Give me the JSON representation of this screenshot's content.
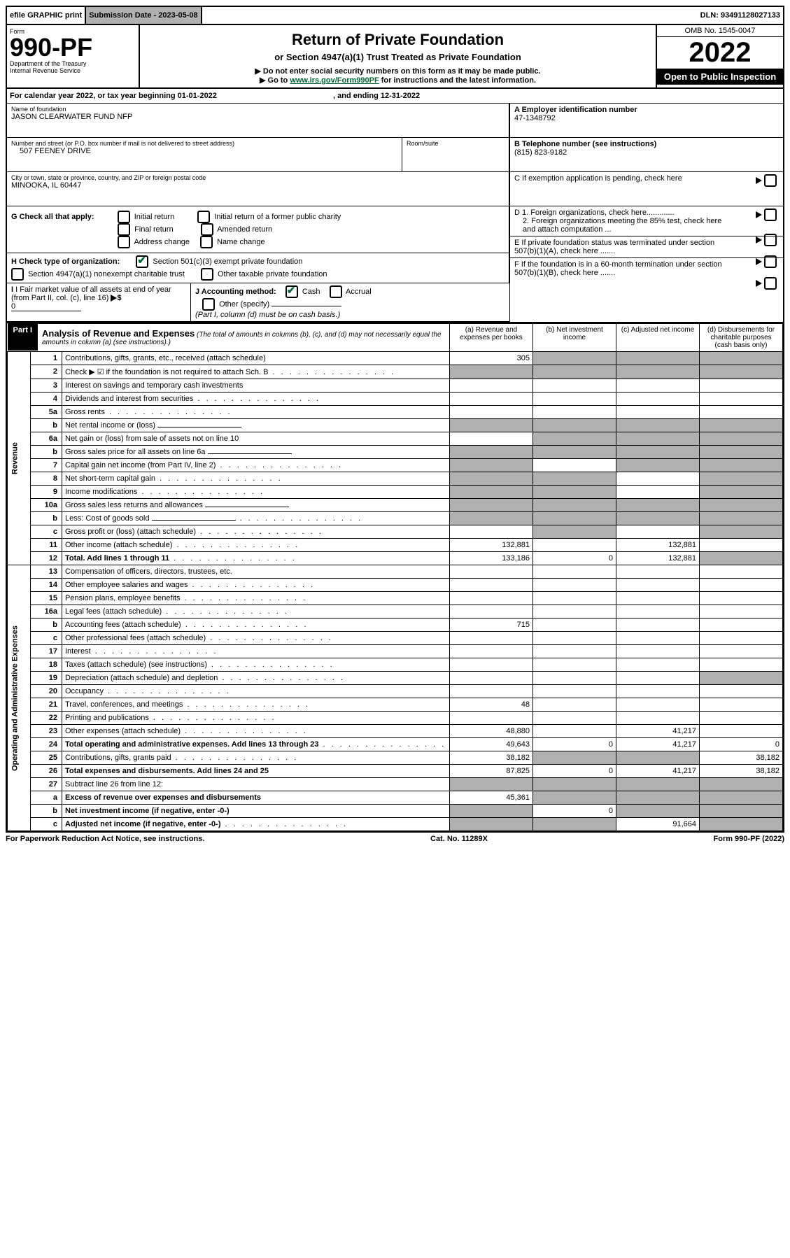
{
  "topbar": {
    "efile": "efile GRAPHIC print",
    "submission_label": "Submission Date - 2023-05-08",
    "dln": "DLN: 93491128027133"
  },
  "header": {
    "form_word": "Form",
    "form_num": "990-PF",
    "dept": "Department of the Treasury",
    "irs": "Internal Revenue Service",
    "title": "Return of Private Foundation",
    "subtitle": "or Section 4947(a)(1) Trust Treated as Private Foundation",
    "note1": "▶ Do not enter social security numbers on this form as it may be made public.",
    "note2_a": "▶ Go to ",
    "note2_link": "www.irs.gov/Form990PF",
    "note2_b": " for instructions and the latest information.",
    "omb": "OMB No. 1545-0047",
    "year": "2022",
    "open": "Open to Public Inspection"
  },
  "calyear": {
    "text_a": "For calendar year 2022, or tax year beginning 01-01-2022",
    "text_b": ", and ending 12-31-2022"
  },
  "ident": {
    "name_lbl": "Name of foundation",
    "name": "JASON CLEARWATER FUND NFP",
    "addr_lbl": "Number and street (or P.O. box number if mail is not delivered to street address)",
    "addr": "507 FEENEY DRIVE",
    "room_lbl": "Room/suite",
    "city_lbl": "City or town, state or province, country, and ZIP or foreign postal code",
    "city": "MINOOKA, IL  60447",
    "ein_lbl": "A Employer identification number",
    "ein": "47-1348792",
    "tel_lbl": "B Telephone number (see instructions)",
    "tel": "(815) 823-9182",
    "c_lbl": "C If exemption application is pending, check here",
    "d1_lbl": "D 1. Foreign organizations, check here.............",
    "d2_lbl": "2. Foreign organizations meeting the 85% test, check here and attach computation ...",
    "e_lbl": "E  If private foundation status was terminated under section 507(b)(1)(A), check here .......",
    "f_lbl": "F  If the foundation is in a 60-month termination under section 507(b)(1)(B), check here .......",
    "g_lbl": "G Check all that apply:",
    "g_opts": [
      "Initial return",
      "Initial return of a former public charity",
      "Final return",
      "Amended return",
      "Address change",
      "Name change"
    ],
    "h_lbl": "H Check type of organization:",
    "h_opt1": "Section 501(c)(3) exempt private foundation",
    "h_opt2": "Section 4947(a)(1) nonexempt charitable trust",
    "h_opt3": "Other taxable private foundation",
    "i_lbl": "I Fair market value of all assets at end of year (from Part II, col. (c), line 16)",
    "i_val": "0",
    "j_lbl": "J Accounting method:",
    "j_cash": "Cash",
    "j_accrual": "Accrual",
    "j_other": "Other (specify)",
    "j_note": "(Part I, column (d) must be on cash basis.)"
  },
  "part1": {
    "label": "Part I",
    "title": "Analysis of Revenue and Expenses",
    "title_note": "(The total of amounts in columns (b), (c), and (d) may not necessarily equal the amounts in column (a) (see instructions).)",
    "col_a": "(a)   Revenue and expenses per books",
    "col_b": "(b)   Net investment income",
    "col_c": "(c)   Adjusted net income",
    "col_d": "(d)   Disbursements for charitable purposes (cash basis only)"
  },
  "side": {
    "revenue": "Revenue",
    "opex": "Operating and Administrative Expenses"
  },
  "rows": [
    {
      "n": "1",
      "t": "Contributions, gifts, grants, etc., received (attach schedule)",
      "a": "305",
      "shade": [
        "b",
        "c",
        "d"
      ]
    },
    {
      "n": "2",
      "t": "Check ▶ ☑ if the foundation is not required to attach Sch. B",
      "dots": true,
      "novals": true,
      "shadeall": true
    },
    {
      "n": "3",
      "t": "Interest on savings and temporary cash investments"
    },
    {
      "n": "4",
      "t": "Dividends and interest from securities",
      "dots": true
    },
    {
      "n": "5a",
      "t": "Gross rents",
      "dots": true
    },
    {
      "n": "b",
      "t": "Net rental income or (loss)",
      "inline_blank": true,
      "shadeall": true
    },
    {
      "n": "6a",
      "t": "Net gain or (loss) from sale of assets not on line 10",
      "shade": [
        "b",
        "c",
        "d"
      ]
    },
    {
      "n": "b",
      "t": "Gross sales price for all assets on line 6a",
      "inline_blank": true,
      "shadeall": true
    },
    {
      "n": "7",
      "t": "Capital gain net income (from Part IV, line 2)",
      "dots": true,
      "shade": [
        "a",
        "c",
        "d"
      ]
    },
    {
      "n": "8",
      "t": "Net short-term capital gain",
      "dots": true,
      "shade": [
        "a",
        "b",
        "d"
      ]
    },
    {
      "n": "9",
      "t": "Income modifications",
      "dots": true,
      "shade": [
        "a",
        "b",
        "d"
      ]
    },
    {
      "n": "10a",
      "t": "Gross sales less returns and allowances",
      "inline_blank": true,
      "shadeall": true
    },
    {
      "n": "b",
      "t": "Less: Cost of goods sold",
      "dots": true,
      "inline_blank": true,
      "shadeall": true
    },
    {
      "n": "c",
      "t": "Gross profit or (loss) (attach schedule)",
      "dots": true,
      "shade": [
        "b",
        "d"
      ]
    },
    {
      "n": "11",
      "t": "Other income (attach schedule)",
      "dots": true,
      "a": "132,881",
      "c": "132,881"
    },
    {
      "n": "12",
      "t": "Total. Add lines 1 through 11",
      "dots": true,
      "bold": true,
      "a": "133,186",
      "b": "0",
      "c": "132,881",
      "shade": [
        "d"
      ]
    },
    {
      "n": "13",
      "t": "Compensation of officers, directors, trustees, etc."
    },
    {
      "n": "14",
      "t": "Other employee salaries and wages",
      "dots": true
    },
    {
      "n": "15",
      "t": "Pension plans, employee benefits",
      "dots": true
    },
    {
      "n": "16a",
      "t": "Legal fees (attach schedule)",
      "dots": true
    },
    {
      "n": "b",
      "t": "Accounting fees (attach schedule)",
      "dots": true,
      "a": "715"
    },
    {
      "n": "c",
      "t": "Other professional fees (attach schedule)",
      "dots": true
    },
    {
      "n": "17",
      "t": "Interest",
      "dots": true
    },
    {
      "n": "18",
      "t": "Taxes (attach schedule) (see instructions)",
      "dots": true
    },
    {
      "n": "19",
      "t": "Depreciation (attach schedule) and depletion",
      "dots": true,
      "shade": [
        "d"
      ]
    },
    {
      "n": "20",
      "t": "Occupancy",
      "dots": true
    },
    {
      "n": "21",
      "t": "Travel, conferences, and meetings",
      "dots": true,
      "a": "48"
    },
    {
      "n": "22",
      "t": "Printing and publications",
      "dots": true
    },
    {
      "n": "23",
      "t": "Other expenses (attach schedule)",
      "dots": true,
      "a": "48,880",
      "c": "41,217"
    },
    {
      "n": "24",
      "t": "Total operating and administrative expenses. Add lines 13 through 23",
      "dots": true,
      "bold": true,
      "a": "49,643",
      "b": "0",
      "c": "41,217",
      "d": "0"
    },
    {
      "n": "25",
      "t": "Contributions, gifts, grants paid",
      "dots": true,
      "a": "38,182",
      "d": "38,182",
      "shade": [
        "b",
        "c"
      ]
    },
    {
      "n": "26",
      "t": "Total expenses and disbursements. Add lines 24 and 25",
      "bold": true,
      "a": "87,825",
      "b": "0",
      "c": "41,217",
      "d": "38,182"
    },
    {
      "n": "27",
      "t": "Subtract line 26 from line 12:",
      "shadeall": true
    },
    {
      "n": "a",
      "t": "Excess of revenue over expenses and disbursements",
      "bold": true,
      "a": "45,361",
      "shade": [
        "b",
        "c",
        "d"
      ]
    },
    {
      "n": "b",
      "t": "Net investment income (if negative, enter -0-)",
      "bold": true,
      "b": "0",
      "shade": [
        "a",
        "c",
        "d"
      ]
    },
    {
      "n": "c",
      "t": "Adjusted net income (if negative, enter -0-)",
      "dots": true,
      "bold": true,
      "c": "91,664",
      "shade": [
        "a",
        "b",
        "d"
      ]
    }
  ],
  "footer": {
    "left": "For Paperwork Reduction Act Notice, see instructions.",
    "mid": "Cat. No. 11289X",
    "right": "Form 990-PF (2022)"
  }
}
